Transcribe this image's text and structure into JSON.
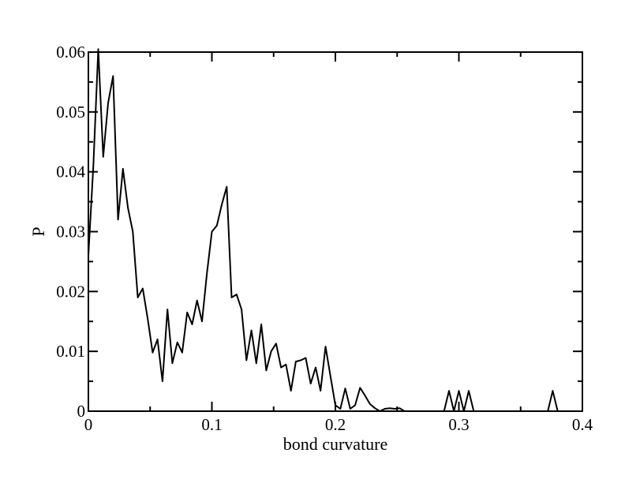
{
  "chart_data": {
    "type": "line",
    "title": "",
    "xlabel": "bond curvature",
    "ylabel": "P",
    "xlim": [
      0,
      0.4
    ],
    "ylim": [
      0,
      0.06
    ],
    "xticks": [
      0,
      0.1,
      0.2,
      0.3,
      0.4
    ],
    "xtick_labels": [
      "0",
      "0.1",
      "0.2",
      "0.3",
      "0.4"
    ],
    "yticks": [
      0,
      0.01,
      0.02,
      0.03,
      0.04,
      0.05,
      0.06
    ],
    "ytick_labels": [
      "0",
      "0.01",
      "0.02",
      "0.03",
      "0.04",
      "0.05",
      "0.06"
    ],
    "grid": false,
    "legend": "none",
    "line_color": "#000000",
    "series": [
      {
        "x": [
          0.0,
          0.004,
          0.008,
          0.012,
          0.016,
          0.02,
          0.024,
          0.028,
          0.032,
          0.036,
          0.04,
          0.044,
          0.048,
          0.052,
          0.056,
          0.06,
          0.064,
          0.068,
          0.072,
          0.076,
          0.08,
          0.084,
          0.088,
          0.092,
          0.096,
          0.1,
          0.104,
          0.108,
          0.112,
          0.116,
          0.12,
          0.124,
          0.128,
          0.132,
          0.136,
          0.14,
          0.144,
          0.148,
          0.152,
          0.156,
          0.16,
          0.164,
          0.168,
          0.172,
          0.176,
          0.18,
          0.184,
          0.188,
          0.192,
          0.196,
          0.2,
          0.204,
          0.208,
          0.212,
          0.216,
          0.22,
          0.224,
          0.228,
          0.232,
          0.236,
          0.24,
          0.244,
          0.248,
          0.252,
          0.256,
          0.26,
          0.264,
          0.268,
          0.272,
          0.276,
          0.28,
          0.284,
          0.288,
          0.292,
          0.296,
          0.3,
          0.304,
          0.308,
          0.312,
          0.316,
          0.32,
          0.324,
          0.328,
          0.332,
          0.336,
          0.34,
          0.344,
          0.348,
          0.352,
          0.356,
          0.36,
          0.364,
          0.368,
          0.372,
          0.376,
          0.38
        ],
        "y": [
          0.026,
          0.041,
          0.0605,
          0.0425,
          0.0515,
          0.056,
          0.032,
          0.0405,
          0.034,
          0.03,
          0.019,
          0.0205,
          0.0155,
          0.0098,
          0.012,
          0.005,
          0.017,
          0.008,
          0.0115,
          0.0098,
          0.0165,
          0.0145,
          0.0185,
          0.015,
          0.023,
          0.03,
          0.031,
          0.0345,
          0.0375,
          0.019,
          0.0195,
          0.017,
          0.0085,
          0.0135,
          0.008,
          0.0145,
          0.0068,
          0.01,
          0.0113,
          0.0073,
          0.0078,
          0.0034,
          0.0083,
          0.0085,
          0.0089,
          0.0046,
          0.0073,
          0.0034,
          0.0108,
          0.0059,
          0.001,
          0.0004,
          0.0038,
          0.0004,
          0.001,
          0.0039,
          0.0026,
          0.0012,
          0.0005,
          0.0,
          0.0004,
          0.0005,
          0.0004,
          0.0005,
          0.0,
          0.0,
          0.0,
          0.0,
          0.0,
          0.0,
          0.0,
          0.0,
          0.0,
          0.0034,
          0.0,
          0.0034,
          0.0,
          0.0034,
          0.0,
          0.0,
          0.0,
          0.0,
          0.0,
          0.0,
          0.0,
          0.0,
          0.0,
          0.0,
          0.0,
          0.0,
          0.0,
          0.0,
          0.0,
          0.0,
          0.0034,
          0.0
        ]
      }
    ]
  }
}
